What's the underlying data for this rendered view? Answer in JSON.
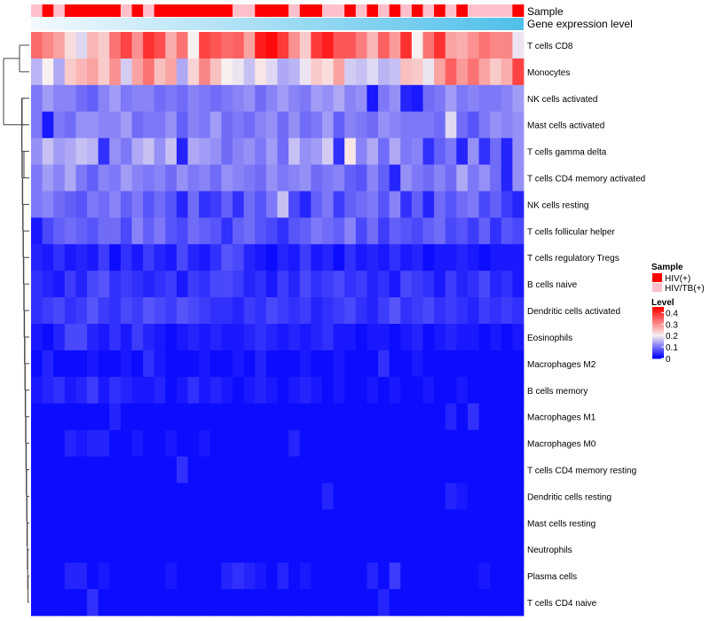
{
  "chart_data": {
    "type": "heatmap",
    "title": "",
    "annotation_tracks": [
      {
        "name": "Sample",
        "values": [
          "HIV/TB(+)",
          "HIV(+)",
          "HIV/TB(+)",
          "HIV(+)",
          "HIV(+)",
          "HIV(+)",
          "HIV(+)",
          "HIV(+)",
          "HIV/TB(+)",
          "HIV(+)",
          "HIV/TB(+)",
          "HIV(+)",
          "HIV(+)",
          "HIV(+)",
          "HIV(+)",
          "HIV(+)",
          "HIV(+)",
          "HIV(+)",
          "HIV/TB(+)",
          "HIV/TB(+)",
          "HIV(+)",
          "HIV(+)",
          "HIV(+)",
          "HIV/TB(+)",
          "HIV(+)",
          "HIV(+)",
          "HIV/TB(+)",
          "HIV/TB(+)",
          "HIV(+)",
          "HIV/TB(+)",
          "HIV(+)",
          "HIV/TB(+)",
          "HIV(+)",
          "HIV/TB(+)",
          "HIV(+)",
          "HIV/TB(+)",
          "HIV(+)",
          "HIV/TB(+)",
          "HIV(+)",
          "HIV/TB(+)",
          "HIV/TB(+)",
          "HIV/TB(+)",
          "HIV/TB(+)",
          "HIV(+)"
        ]
      },
      {
        "name": "Gene expression level",
        "continuous": true
      }
    ],
    "legend": {
      "sample_title": "Sample",
      "sample_entries": [
        {
          "label": "HIV(+)",
          "color": "#ff0000"
        },
        {
          "label": "HIV/TB(+)",
          "color": "#ffc0cb"
        }
      ],
      "level_title": "Level",
      "level_ticks": [
        "0.4",
        "0.3",
        "0.2",
        "0.1",
        "0"
      ],
      "position": "right"
    },
    "color_scale": {
      "min": 0,
      "mid": 0.2,
      "max": 0.45,
      "low": "#0000ff",
      "mid_color": "#f8f0f0",
      "high": "#ff0000"
    },
    "rows": [
      "T cells CD8",
      "Monocytes",
      "NK cells activated",
      "Mast cells activated",
      "T cells gamma delta",
      "T cells CD4 memory activated",
      "NK cells resting",
      "T cells follicular helper",
      "T cells regulatory  Tregs",
      "B cells naive",
      "Dendritic cells activated",
      "Eosinophils",
      "Macrophages M2",
      "B cells memory",
      "Macrophages M1",
      "Macrophages M0",
      "T cells CD4 memory resting",
      "Dendritic cells resting",
      "Mast cells resting",
      "Neutrophils",
      "Plasma cells",
      "T cells CD4 naive"
    ],
    "values": [
      [
        0.34,
        0.31,
        0.28,
        0.22,
        0.18,
        0.26,
        0.24,
        0.33,
        0.38,
        0.3,
        0.4,
        0.37,
        0.27,
        0.33,
        0.2,
        0.38,
        0.36,
        0.34,
        0.35,
        0.28,
        0.42,
        0.44,
        0.39,
        0.3,
        0.24,
        0.39,
        0.42,
        0.36,
        0.36,
        0.32,
        0.26,
        0.35,
        0.29,
        0.4,
        0.2,
        0.33,
        0.4,
        0.28,
        0.27,
        0.3,
        0.33,
        0.31,
        0.31,
        0.19
      ],
      [
        0.15,
        0.2,
        0.14,
        0.24,
        0.26,
        0.28,
        0.24,
        0.3,
        0.17,
        0.28,
        0.33,
        0.25,
        0.28,
        0.14,
        0.23,
        0.31,
        0.25,
        0.2,
        0.19,
        0.16,
        0.21,
        0.18,
        0.14,
        0.15,
        0.19,
        0.24,
        0.22,
        0.28,
        0.17,
        0.16,
        0.18,
        0.15,
        0.16,
        0.25,
        0.24,
        0.19,
        0.28,
        0.35,
        0.29,
        0.33,
        0.28,
        0.24,
        0.27,
        0.38
      ],
      [
        0.1,
        0.13,
        0.11,
        0.11,
        0.09,
        0.08,
        0.11,
        0.13,
        0.1,
        0.11,
        0.11,
        0.09,
        0.1,
        0.09,
        0.11,
        0.1,
        0.09,
        0.1,
        0.11,
        0.12,
        0.09,
        0.11,
        0.13,
        0.11,
        0.1,
        0.13,
        0.12,
        0.14,
        0.11,
        0.12,
        0.02,
        0.1,
        0.12,
        0.03,
        0.02,
        0.09,
        0.1,
        0.13,
        0.1,
        0.11,
        0.1,
        0.1,
        0.11,
        0.13
      ],
      [
        0.1,
        0.02,
        0.1,
        0.09,
        0.12,
        0.12,
        0.11,
        0.11,
        0.13,
        0.09,
        0.1,
        0.1,
        0.12,
        0.08,
        0.11,
        0.1,
        0.13,
        0.09,
        0.1,
        0.09,
        0.11,
        0.12,
        0.09,
        0.12,
        0.09,
        0.1,
        0.13,
        0.08,
        0.11,
        0.1,
        0.09,
        0.12,
        0.11,
        0.1,
        0.1,
        0.1,
        0.09,
        0.18,
        0.09,
        0.07,
        0.1,
        0.12,
        0.11,
        0.12
      ],
      [
        0.12,
        0.16,
        0.13,
        0.14,
        0.16,
        0.15,
        0.04,
        0.12,
        0.1,
        0.14,
        0.16,
        0.12,
        0.16,
        0.03,
        0.14,
        0.13,
        0.12,
        0.09,
        0.11,
        0.12,
        0.1,
        0.13,
        0.09,
        0.16,
        0.12,
        0.13,
        0.17,
        0.04,
        0.21,
        0.11,
        0.14,
        0.09,
        0.14,
        0.1,
        0.11,
        0.04,
        0.08,
        0.1,
        0.03,
        0.12,
        0.04,
        0.09,
        0.03,
        0.12
      ],
      [
        0.1,
        0.13,
        0.11,
        0.14,
        0.1,
        0.08,
        0.11,
        0.1,
        0.13,
        0.11,
        0.1,
        0.11,
        0.09,
        0.12,
        0.1,
        0.11,
        0.09,
        0.12,
        0.11,
        0.1,
        0.09,
        0.12,
        0.1,
        0.11,
        0.12,
        0.09,
        0.1,
        0.11,
        0.08,
        0.07,
        0.11,
        0.08,
        0.03,
        0.12,
        0.1,
        0.09,
        0.11,
        0.09,
        0.14,
        0.1,
        0.12,
        0.09,
        0.03,
        0.12
      ],
      [
        0.1,
        0.11,
        0.09,
        0.08,
        0.07,
        0.1,
        0.09,
        0.11,
        0.08,
        0.1,
        0.07,
        0.09,
        0.07,
        0.03,
        0.09,
        0.04,
        0.05,
        0.08,
        0.04,
        0.09,
        0.07,
        0.1,
        0.16,
        0.06,
        0.03,
        0.08,
        0.1,
        0.05,
        0.08,
        0.09,
        0.1,
        0.07,
        0.11,
        0.04,
        0.08,
        0.03,
        0.09,
        0.07,
        0.09,
        0.1,
        0.06,
        0.08,
        0.05,
        0.03
      ],
      [
        0.02,
        0.06,
        0.08,
        0.09,
        0.08,
        0.07,
        0.09,
        0.09,
        0.06,
        0.11,
        0.08,
        0.1,
        0.07,
        0.06,
        0.09,
        0.08,
        0.07,
        0.04,
        0.08,
        0.09,
        0.07,
        0.06,
        0.04,
        0.07,
        0.08,
        0.1,
        0.09,
        0.08,
        0.11,
        0.06,
        0.09,
        0.05,
        0.08,
        0.07,
        0.06,
        0.08,
        0.09,
        0.06,
        0.07,
        0.05,
        0.08,
        0.04,
        0.07,
        0.06
      ],
      [
        0.03,
        0.02,
        0.04,
        0.02,
        0.03,
        0.02,
        0.05,
        0.01,
        0.04,
        0.02,
        0.05,
        0.03,
        0.02,
        0.06,
        0.03,
        0.02,
        0.04,
        0.07,
        0.06,
        0.03,
        0.02,
        0.01,
        0.03,
        0.02,
        0.05,
        0.02,
        0.03,
        0.01,
        0.04,
        0.02,
        0.03,
        0.02,
        0.04,
        0.02,
        0.03,
        0.01,
        0.02,
        0.02,
        0.03,
        0.02,
        0.01,
        0.02,
        0.02,
        0.02
      ],
      [
        0.04,
        0.03,
        0.02,
        0.05,
        0.03,
        0.06,
        0.07,
        0.04,
        0.05,
        0.04,
        0.03,
        0.04,
        0.05,
        0.02,
        0.05,
        0.04,
        0.06,
        0.06,
        0.05,
        0.03,
        0.04,
        0.02,
        0.05,
        0.03,
        0.06,
        0.04,
        0.05,
        0.06,
        0.04,
        0.05,
        0.03,
        0.04,
        0.02,
        0.06,
        0.05,
        0.04,
        0.02,
        0.05,
        0.03,
        0.04,
        0.06,
        0.03,
        0.04,
        0.02
      ],
      [
        0.04,
        0.05,
        0.06,
        0.04,
        0.05,
        0.07,
        0.05,
        0.04,
        0.06,
        0.05,
        0.07,
        0.06,
        0.05,
        0.07,
        0.06,
        0.05,
        0.04,
        0.04,
        0.03,
        0.05,
        0.04,
        0.06,
        0.05,
        0.04,
        0.05,
        0.03,
        0.04,
        0.05,
        0.06,
        0.04,
        0.03,
        0.05,
        0.07,
        0.04,
        0.05,
        0.06,
        0.04,
        0.05,
        0.04,
        0.03,
        0.05,
        0.04,
        0.05,
        0.04
      ],
      [
        0.02,
        0.01,
        0.03,
        0.06,
        0.06,
        0.03,
        0.02,
        0.04,
        0.02,
        0.05,
        0.03,
        0.02,
        0.01,
        0.02,
        0.03,
        0.02,
        0.03,
        0.02,
        0.02,
        0.03,
        0.04,
        0.03,
        0.02,
        0.03,
        0.02,
        0.03,
        0.04,
        0.02,
        0.02,
        0.01,
        0.02,
        0.02,
        0.01,
        0.02,
        0.03,
        0.01,
        0.02,
        0.03,
        0.02,
        0.02,
        0.01,
        0.02,
        0.01,
        0.02
      ],
      [
        0.01,
        0.03,
        0.01,
        0.01,
        0.01,
        0.02,
        0.01,
        0.01,
        0.02,
        0.01,
        0.04,
        0.02,
        0.01,
        0.01,
        0.01,
        0.02,
        0.01,
        0.01,
        0.02,
        0.01,
        0.03,
        0.01,
        0.01,
        0.01,
        0.02,
        0.01,
        0.01,
        0.02,
        0.01,
        0.01,
        0.01,
        0.04,
        0.01,
        0.01,
        0.02,
        0.01,
        0.01,
        0.01,
        0.01,
        0.01,
        0.01,
        0.01,
        0.01,
        0.01
      ],
      [
        0.02,
        0.03,
        0.04,
        0.02,
        0.03,
        0.05,
        0.02,
        0.04,
        0.03,
        0.02,
        0.02,
        0.03,
        0.01,
        0.02,
        0.04,
        0.02,
        0.03,
        0.02,
        0.01,
        0.02,
        0.03,
        0.02,
        0.01,
        0.02,
        0.03,
        0.02,
        0.01,
        0.02,
        0.01,
        0.01,
        0.02,
        0.01,
        0.02,
        0.01,
        0.01,
        0.02,
        0.01,
        0.01,
        0.02,
        0.01,
        0.01,
        0.01,
        0.01,
        0.01
      ],
      [
        0.01,
        0.01,
        0.01,
        0.01,
        0.01,
        0.01,
        0.01,
        0.03,
        0.01,
        0.01,
        0.01,
        0.01,
        0.01,
        0.01,
        0.01,
        0.01,
        0.01,
        0.01,
        0.01,
        0.01,
        0.01,
        0.01,
        0.01,
        0.01,
        0.01,
        0.01,
        0.01,
        0.01,
        0.01,
        0.01,
        0.01,
        0.01,
        0.01,
        0.01,
        0.01,
        0.01,
        0.01,
        0.03,
        0.01,
        0.04,
        0.01,
        0.01,
        0.01,
        0.01
      ],
      [
        0.01,
        0.01,
        0.01,
        0.03,
        0.02,
        0.03,
        0.03,
        0.01,
        0.01,
        0.02,
        0.01,
        0.01,
        0.02,
        0.01,
        0.01,
        0.02,
        0.01,
        0.01,
        0.01,
        0.01,
        0.01,
        0.01,
        0.01,
        0.03,
        0.01,
        0.01,
        0.01,
        0.01,
        0.01,
        0.01,
        0.01,
        0.01,
        0.01,
        0.01,
        0.01,
        0.01,
        0.01,
        0.01,
        0.01,
        0.01,
        0.01,
        0.01,
        0.01,
        0.01
      ],
      [
        0.01,
        0.01,
        0.01,
        0.01,
        0.01,
        0.01,
        0.01,
        0.01,
        0.01,
        0.01,
        0.01,
        0.01,
        0.01,
        0.04,
        0.01,
        0.01,
        0.01,
        0.01,
        0.01,
        0.01,
        0.01,
        0.01,
        0.01,
        0.01,
        0.01,
        0.01,
        0.01,
        0.01,
        0.01,
        0.01,
        0.01,
        0.01,
        0.01,
        0.01,
        0.01,
        0.01,
        0.01,
        0.01,
        0.01,
        0.01,
        0.01,
        0.01,
        0.01,
        0.01
      ],
      [
        0.01,
        0.01,
        0.01,
        0.01,
        0.01,
        0.01,
        0.01,
        0.01,
        0.01,
        0.01,
        0.01,
        0.01,
        0.01,
        0.01,
        0.01,
        0.01,
        0.01,
        0.01,
        0.01,
        0.01,
        0.01,
        0.01,
        0.01,
        0.01,
        0.01,
        0.01,
        0.03,
        0.01,
        0.01,
        0.01,
        0.01,
        0.01,
        0.01,
        0.01,
        0.01,
        0.01,
        0.01,
        0.03,
        0.02,
        0.01,
        0.01,
        0.01,
        0.01,
        0.01
      ],
      [
        0.01,
        0.01,
        0.01,
        0.01,
        0.01,
        0.01,
        0.01,
        0.01,
        0.01,
        0.01,
        0.01,
        0.01,
        0.01,
        0.01,
        0.01,
        0.01,
        0.01,
        0.01,
        0.01,
        0.01,
        0.01,
        0.01,
        0.01,
        0.01,
        0.01,
        0.01,
        0.01,
        0.01,
        0.01,
        0.01,
        0.01,
        0.01,
        0.01,
        0.01,
        0.01,
        0.01,
        0.01,
        0.01,
        0.01,
        0.01,
        0.01,
        0.01,
        0.01,
        0.01
      ],
      [
        0.01,
        0.01,
        0.01,
        0.01,
        0.01,
        0.01,
        0.01,
        0.01,
        0.01,
        0.01,
        0.01,
        0.01,
        0.01,
        0.01,
        0.01,
        0.01,
        0.01,
        0.01,
        0.01,
        0.01,
        0.01,
        0.01,
        0.01,
        0.01,
        0.01,
        0.01,
        0.01,
        0.01,
        0.01,
        0.01,
        0.01,
        0.01,
        0.01,
        0.01,
        0.01,
        0.01,
        0.01,
        0.01,
        0.01,
        0.01,
        0.01,
        0.01,
        0.01,
        0.01
      ],
      [
        0.01,
        0.01,
        0.01,
        0.03,
        0.03,
        0.01,
        0.02,
        0.01,
        0.01,
        0.01,
        0.01,
        0.01,
        0.02,
        0.01,
        0.01,
        0.01,
        0.01,
        0.03,
        0.04,
        0.03,
        0.02,
        0.01,
        0.03,
        0.01,
        0.02,
        0.01,
        0.01,
        0.01,
        0.01,
        0.01,
        0.03,
        0.01,
        0.05,
        0.01,
        0.01,
        0.01,
        0.01,
        0.01,
        0.01,
        0.01,
        0.02,
        0.01,
        0.01,
        0.01
      ],
      [
        0.01,
        0.01,
        0.01,
        0.01,
        0.01,
        0.04,
        0.01,
        0.01,
        0.01,
        0.01,
        0.01,
        0.01,
        0.01,
        0.01,
        0.01,
        0.01,
        0.01,
        0.01,
        0.01,
        0.01,
        0.01,
        0.01,
        0.01,
        0.01,
        0.01,
        0.01,
        0.01,
        0.01,
        0.01,
        0.01,
        0.01,
        0.03,
        0.01,
        0.01,
        0.01,
        0.01,
        0.01,
        0.01,
        0.01,
        0.01,
        0.01,
        0.01,
        0.01,
        0.01
      ]
    ],
    "dendrogram": {
      "orientation": "left",
      "merges": [
        [
          0,
          1,
          0.55
        ],
        [
          2,
          3,
          0.1
        ],
        [
          4,
          5,
          0.12
        ],
        [
          6,
          7,
          0.14
        ],
        [
          20,
          21,
          0.06
        ]
      ]
    }
  }
}
